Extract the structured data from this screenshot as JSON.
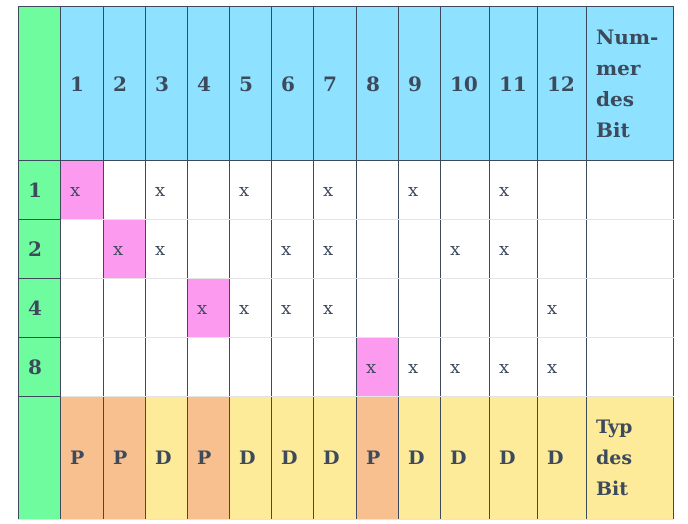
{
  "table": {
    "header": [
      null,
      "1",
      "2",
      "3",
      "4",
      "5",
      "6",
      "7",
      "8",
      "9",
      "10",
      "11",
      "12",
      "Num-mer des Bit"
    ],
    "rows": [
      [
        "1",
        "x",
        null,
        "x",
        null,
        "x",
        null,
        "x",
        null,
        "x",
        null,
        "x",
        null,
        null
      ],
      [
        "2",
        null,
        "x",
        "x",
        null,
        null,
        "x",
        "x",
        null,
        null,
        "x",
        "x",
        null,
        null
      ],
      [
        "4",
        null,
        null,
        null,
        "x",
        "x",
        "x",
        "x",
        null,
        null,
        null,
        null,
        "x",
        null
      ],
      [
        "8",
        null,
        null,
        null,
        null,
        null,
        null,
        null,
        "x",
        "x",
        "x",
        "x",
        "x",
        null
      ]
    ],
    "footer": [
      null,
      "P",
      "P",
      "D",
      "P",
      "D",
      "D",
      "D",
      "P",
      "D",
      "D",
      "D",
      "D",
      "Typ des Bit"
    ]
  }
}
